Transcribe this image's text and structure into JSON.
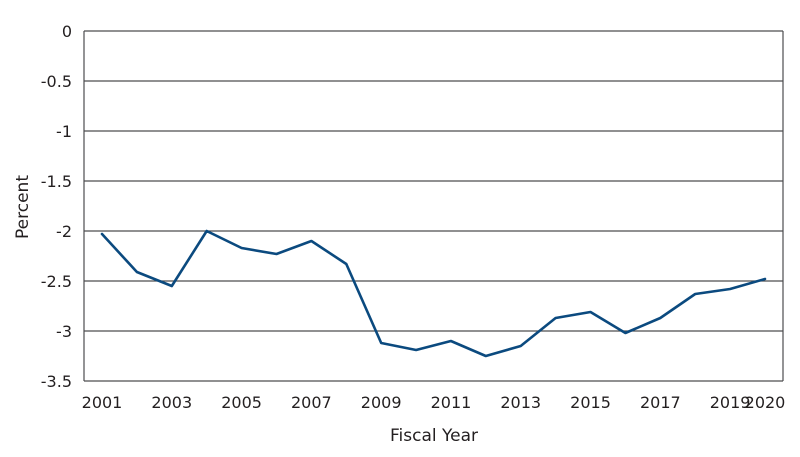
{
  "chart_data": {
    "type": "line",
    "title": "",
    "xlabel": "Fiscal Year",
    "ylabel": "Percent",
    "x": [
      2001,
      2002,
      2003,
      2004,
      2005,
      2006,
      2007,
      2008,
      2009,
      2010,
      2011,
      2012,
      2013,
      2014,
      2015,
      2016,
      2017,
      2018,
      2019,
      2020
    ],
    "series": [
      {
        "name": "",
        "values": [
          -2.03,
          -2.41,
          -2.55,
          -2.0,
          -2.17,
          -2.23,
          -2.1,
          -2.33,
          -3.12,
          -3.19,
          -3.1,
          -3.25,
          -3.15,
          -2.87,
          -2.81,
          -3.02,
          -2.87,
          -2.63,
          -2.58,
          -2.48
        ]
      }
    ],
    "ylim": [
      -3.5,
      0
    ],
    "yticks": [
      "0",
      "-0.5",
      "-1",
      "-1.5",
      "-2",
      "-2.5",
      "-3",
      "-3.5"
    ],
    "ytick_values": [
      0,
      -0.5,
      -1,
      -1.5,
      -2,
      -2.5,
      -3,
      -3.5
    ],
    "xticks": [
      "2001",
      "2003",
      "2005",
      "2007",
      "2009",
      "2011",
      "2013",
      "2015",
      "2017",
      "2019",
      "2020"
    ],
    "xtick_values": [
      2001,
      2003,
      2005,
      2007,
      2009,
      2011,
      2013,
      2015,
      2017,
      2019,
      2020
    ],
    "grid": true,
    "colors": {
      "line": "#0b4a7f",
      "grid": "#4d4d4f",
      "text": "#231f20"
    }
  }
}
